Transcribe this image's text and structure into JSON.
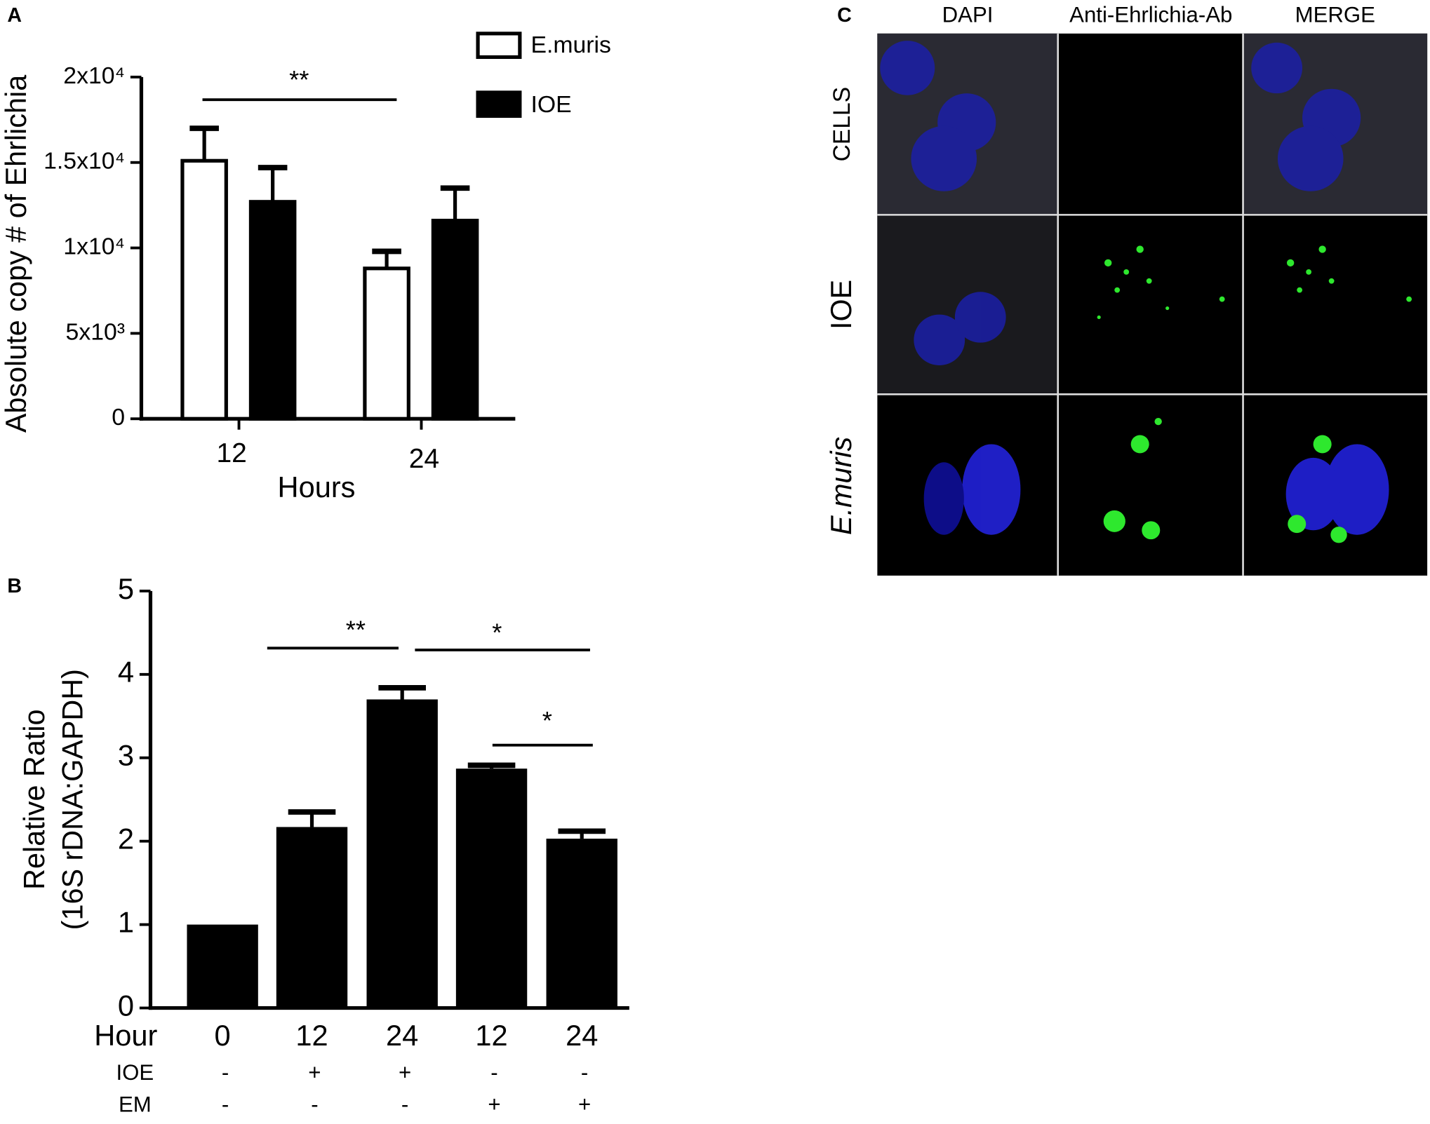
{
  "chart_data": [
    {
      "type": "bar",
      "xlabel": "Hours",
      "ylabel": "Absolute copy # of Ehrlichia",
      "categories": [
        "12",
        "24"
      ],
      "series": [
        {
          "name": "E.muris",
          "color": "#ffffff",
          "values": [
            15100,
            8800
          ],
          "errors": [
            1900,
            1000
          ]
        },
        {
          "name": "IOE",
          "color": "#000000",
          "values": [
            12700,
            11600
          ],
          "errors": [
            2000,
            1900
          ]
        }
      ],
      "ylim": [
        0,
        20000
      ],
      "yticks": [
        0,
        {
          "value": 5000,
          "label": "5x10³"
        },
        {
          "value": 10000,
          "label": "1x10⁴"
        },
        {
          "value": 15000,
          "label": "1.5x10⁴"
        },
        {
          "value": 20000,
          "label": "2x10⁴"
        }
      ],
      "annotations": [
        "**"
      ]
    },
    {
      "type": "bar",
      "xlabel": "Hour",
      "ylabel": [
        "Relative Ratio",
        "(16S rDNA:GAPDH)"
      ],
      "categories": [
        "0",
        "12",
        "24",
        "12",
        "24"
      ],
      "values": [
        1,
        2.17,
        3.7,
        2.87,
        2.03
      ],
      "errors": [
        0,
        0.18,
        0.14,
        0.04,
        0.09
      ],
      "color": "#000000",
      "ylim": [
        0,
        5
      ],
      "yticks": [
        0,
        1,
        2,
        3,
        4,
        5
      ],
      "rows": [
        {
          "name": "IOE",
          "values": [
            "-",
            "+",
            "+",
            "-",
            "-"
          ]
        },
        {
          "name": "EM",
          "values": [
            "-",
            "-",
            "-",
            "+",
            "+"
          ]
        }
      ],
      "annotations": [
        "**",
        "*",
        "*"
      ]
    }
  ],
  "panel_labels": [
    "A",
    "B",
    "C"
  ],
  "image_grid": {
    "columns": [
      "DAPI",
      "Anti-Ehrlichia-Ab",
      "MERGE"
    ],
    "rows": [
      "CELLS",
      "IOE",
      "E.muris"
    ]
  }
}
